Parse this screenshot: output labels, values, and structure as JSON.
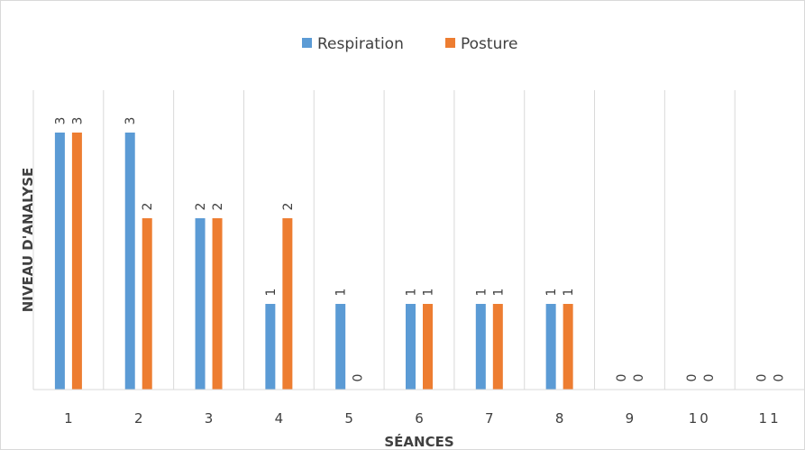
{
  "chart_data": {
    "type": "bar",
    "title": "",
    "xlabel": "SÉANCES",
    "ylabel": "NIVEAU D'ANALYSE",
    "categories": [
      "1",
      "2",
      "3",
      "4",
      "5",
      "6",
      "7",
      "8",
      "9",
      "10",
      "11"
    ],
    "series": [
      {
        "name": "Respiration",
        "color": "#5b9bd5",
        "values": [
          3,
          3,
          2,
          1,
          1,
          1,
          1,
          1,
          0,
          0,
          0
        ]
      },
      {
        "name": "Posture",
        "color": "#ed7d31",
        "values": [
          3,
          2,
          2,
          2,
          0,
          1,
          1,
          1,
          0,
          0,
          0
        ]
      }
    ],
    "ylim": [
      0,
      3.5
    ],
    "grid": "vertical",
    "legend": "top-center",
    "data_labels": "rotated"
  }
}
